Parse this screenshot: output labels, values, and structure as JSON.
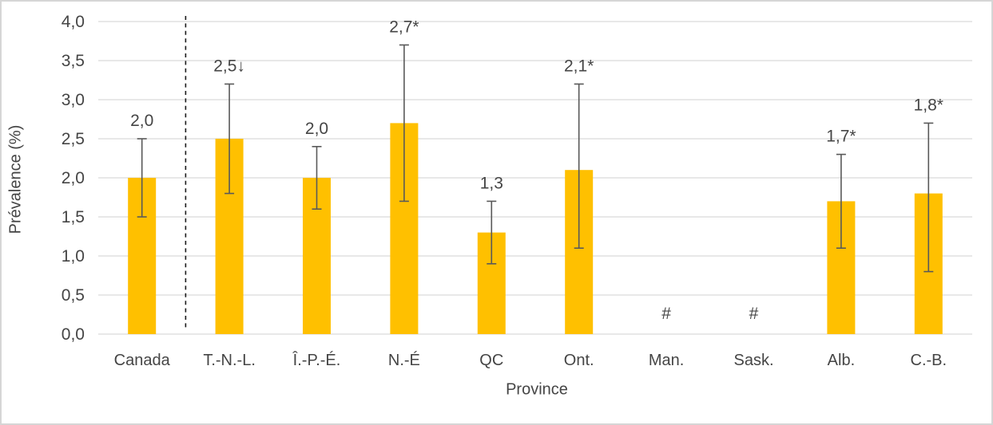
{
  "chart_data": {
    "type": "bar",
    "xlabel": "Province",
    "ylabel": "Prévalence (%)",
    "ylim": [
      0,
      4
    ],
    "ytick_step": 0.5,
    "ytick_labels": [
      "0,0",
      "0,5",
      "1,0",
      "1,5",
      "2,0",
      "2,5",
      "3,0",
      "3,5",
      "4,0"
    ],
    "grid": true,
    "legend": "none",
    "categories": [
      "Canada",
      "T.-N.-L.",
      "Î.-P.-É.",
      "N.-É",
      "QC",
      "Ont.",
      "Man.",
      "Sask.",
      "Alb.",
      "C.-B."
    ],
    "bars": [
      {
        "category": "Canada",
        "value": 2.0,
        "label": "2,0",
        "err_low": 1.5,
        "err_high": 2.5
      },
      {
        "category": "T.-N.-L.",
        "value": 2.5,
        "label": "2,5↓",
        "err_low": 1.8,
        "err_high": 3.2
      },
      {
        "category": "Î.-P.-É.",
        "value": 2.0,
        "label": "2,0",
        "err_low": 1.6,
        "err_high": 2.4
      },
      {
        "category": "N.-É",
        "value": 2.7,
        "label": "2,7*",
        "err_low": 1.7,
        "err_high": 3.7
      },
      {
        "category": "QC",
        "value": 1.3,
        "label": "1,3",
        "err_low": 0.9,
        "err_high": 1.7
      },
      {
        "category": "Ont.",
        "value": 2.1,
        "label": "2,1*",
        "err_low": 1.1,
        "err_high": 3.2
      },
      {
        "category": "Man.",
        "value": null,
        "label": "#",
        "err_low": null,
        "err_high": null
      },
      {
        "category": "Sask.",
        "value": null,
        "label": "#",
        "err_low": null,
        "err_high": null
      },
      {
        "category": "Alb.",
        "value": 1.7,
        "label": "1,7*",
        "err_low": 1.1,
        "err_high": 2.3
      },
      {
        "category": "C.-B.",
        "value": 1.8,
        "label": "1,8*",
        "err_low": 0.8,
        "err_high": 2.7
      }
    ],
    "separator_after_index": 0,
    "colors": {
      "bar": "#FFC000",
      "error_bar": "#595959",
      "gridline": "#D9D9D9",
      "text": "#454545",
      "separator": "#1a1a1a",
      "frame_border": "#d6d6d6"
    }
  }
}
